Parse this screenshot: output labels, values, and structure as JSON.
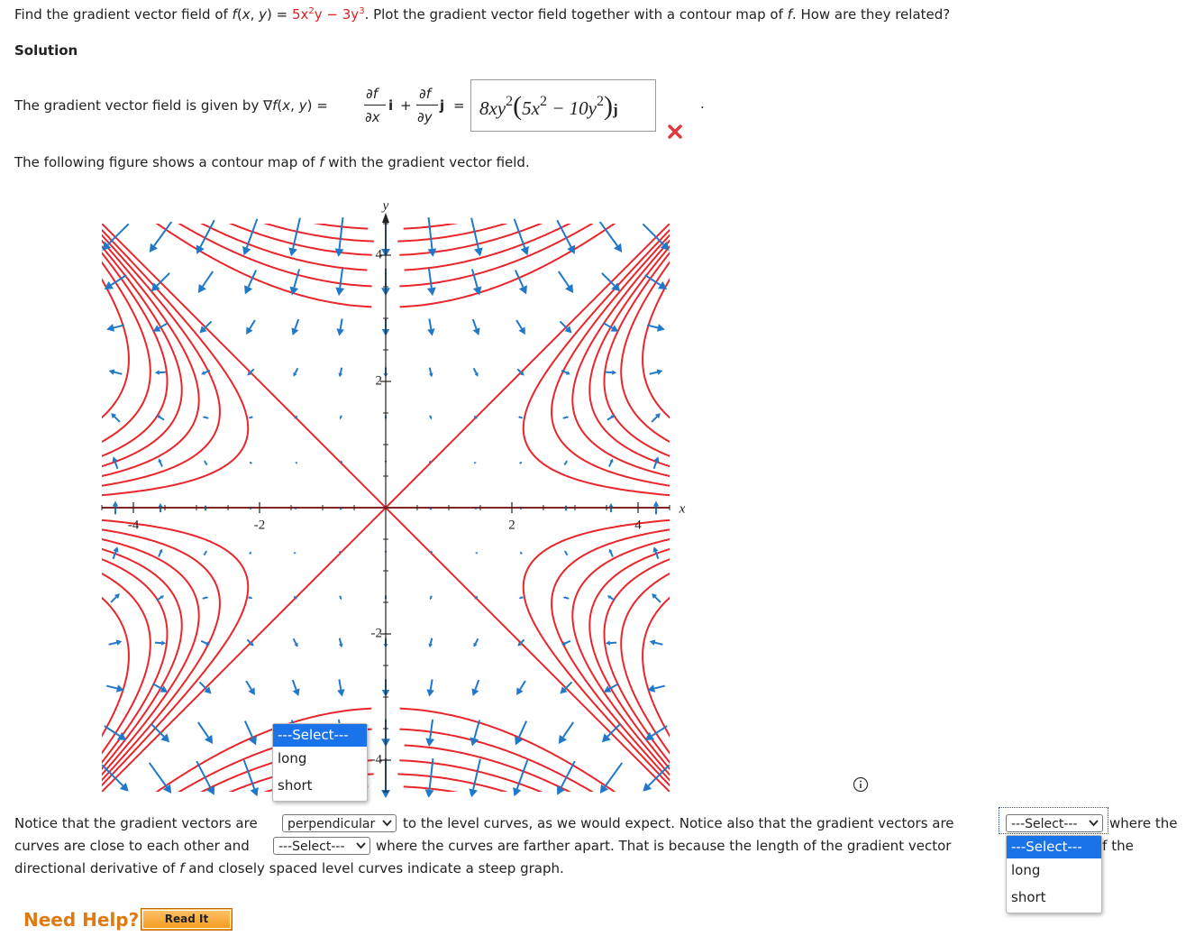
{
  "question": [
    "Find the gradient vector field of ",
    "f",
    "(",
    "x",
    ", ",
    "y",
    ") = ",
    "5x",
    "2",
    "y − 3y",
    "3",
    ". Plot the gradient vector field together with a contour map of ",
    "f",
    ". How are they related?"
  ],
  "solution_heading": "Solution",
  "gradient_statement": {
    "prefix": [
      "The gradient vector field is given by ∇",
      "f",
      "(",
      "x",
      ", ",
      "y",
      ") = "
    ],
    "partial_f": "∂f",
    "partial_x": "∂x",
    "i": "i",
    "plus": "+",
    "partial_y": "∂y",
    "j": "j",
    "equals": "=",
    "answer": [
      "8xy",
      "2",
      "(",
      "5x",
      "2",
      " − 10y",
      "2",
      ")",
      "j"
    ],
    "period": "."
  },
  "figure_caption": [
    "The following figure shows a contour map of ",
    "f",
    " with the gradient vector field."
  ],
  "graph": {
    "x_label": "x",
    "y_label": "y",
    "xlim": [
      -4.5,
      4.5
    ],
    "ylim": [
      -4.5,
      4.5
    ],
    "xticks": [
      -4,
      -2,
      2,
      4
    ],
    "yticks": [
      -4,
      -2,
      2,
      4
    ]
  },
  "graph_dropdown_options": [
    "---Select---",
    "long",
    "short"
  ],
  "conclusion": {
    "line1": [
      "Notice that the gradient vectors are",
      "perpendicular",
      "to the level curves, as we would expect. Notice also that the gradient vectors are",
      "---Select---",
      "where the"
    ],
    "line2": [
      "curves are close to each other and",
      "---Select---",
      "where the curves are farther apart. That is because the length of the gradient vector",
      "of the"
    ],
    "line3": [
      "directional derivative of ",
      "f",
      " and closely spaced level curves indicate a steep graph."
    ],
    "open_dropdown_options": [
      "---Select---",
      "long",
      "short"
    ]
  },
  "help": {
    "label": "Need Help?",
    "button": "Read It"
  }
}
